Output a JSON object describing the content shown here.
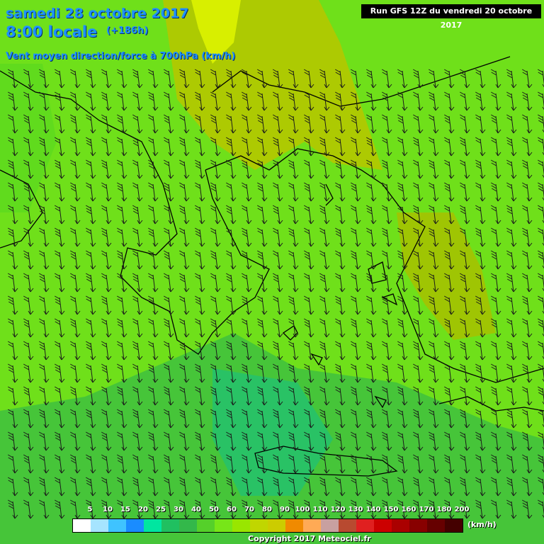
{
  "header": {
    "date": "samedi 28 octobre 2017",
    "local_time": "8:00 locale",
    "lead": "(+186h)",
    "variable": "Vent moyen direction/force à 700hPa (km/h)",
    "run": "Run GFS 12Z du vendredi 20 octobre 2017"
  },
  "legend": {
    "labels": [
      "5",
      "10",
      "15",
      "20",
      "25",
      "30",
      "40",
      "50",
      "60",
      "70",
      "80",
      "90",
      "100",
      "110",
      "120",
      "130",
      "140",
      "150",
      "160",
      "170",
      "180",
      "200"
    ],
    "colors": [
      "#ffffff",
      "#a6e4ff",
      "#3fc3ff",
      "#1a8cff",
      "#00e6a0",
      "#20c060",
      "#33b84a",
      "#55d02a",
      "#77e618",
      "#99e600",
      "#c0d600",
      "#cccc00",
      "#f08a00",
      "#ffaa55",
      "#c8a0a0",
      "#b84a30",
      "#e02020",
      "#cc0000",
      "#aa0000",
      "#880000",
      "#660000",
      "#440000"
    ],
    "unit": "(km/h)"
  },
  "footer": {
    "copyright": "Copyright 2017 Meteociel.fr"
  },
  "map": {
    "icons": [
      "wind-barb-icon"
    ],
    "colors": {
      "background": "#6fe01a",
      "strong_zone": "#a8c800",
      "weak_zone": "#30b850",
      "coast": "#000000"
    }
  }
}
